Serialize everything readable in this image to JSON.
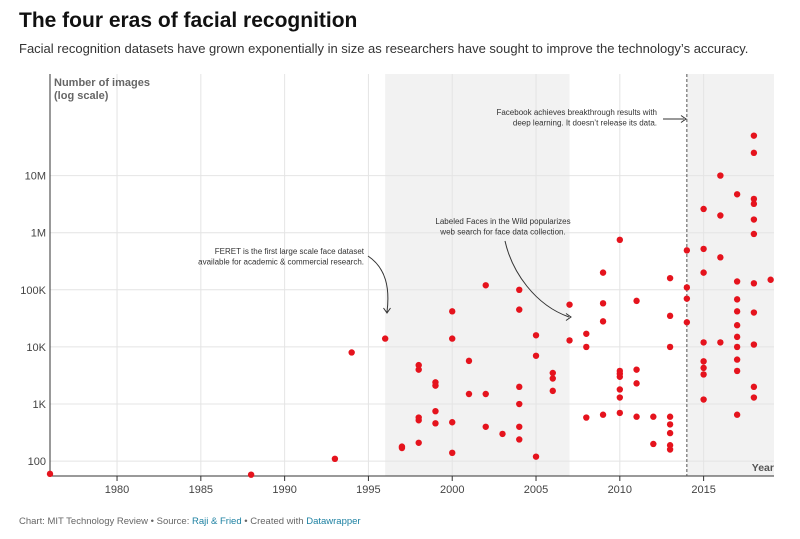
{
  "header": {
    "title": "The four eras of facial recognition",
    "subtitle": "Facial recognition datasets have grown exponentially in size as researchers have sought to improve the technology’s accuracy."
  },
  "footer": {
    "prefix": "Chart: MIT Technology Review • Source: ",
    "source": "Raji & Fried",
    "middle": " • Created with ",
    "tool": "Datawrapper"
  },
  "colors": {
    "dot": "#e5131d",
    "shade": "#f2f2f2",
    "grid": "#e4e4e4",
    "axis": "#333333",
    "link": "#1d81a2"
  },
  "chart_data": {
    "type": "scatter",
    "ylabel": "Number of images",
    "ylabel_note": "(log scale)",
    "xlabel": "Year",
    "y_scale": "log",
    "grid": true,
    "xlim": [
      1976,
      2019.2
    ],
    "ylim": [
      55,
      600000000
    ],
    "x_ticks": [
      1980,
      1985,
      1990,
      1995,
      2000,
      2005,
      2010,
      2015
    ],
    "y_ticks": [
      {
        "value": 100,
        "label": "100"
      },
      {
        "value": 1000,
        "label": "1K"
      },
      {
        "value": 10000,
        "label": "10K"
      },
      {
        "value": 100000,
        "label": "100K"
      },
      {
        "value": 1000000,
        "label": "1M"
      },
      {
        "value": 10000000,
        "label": "10M"
      }
    ],
    "shaded_eras": [
      [
        1996,
        2007
      ],
      [
        2014,
        2019.2
      ]
    ],
    "vertical_marker": 2014,
    "annotations": [
      {
        "lines": [
          "FERET is the first large scale face dataset",
          "available for academic & commercial research."
        ],
        "x": 1996,
        "y": 14000
      },
      {
        "lines": [
          "Labeled Faces in the Wild popularizes",
          "web search for face data collection."
        ],
        "x": 2007,
        "y": 13000
      },
      {
        "lines": [
          "Facebook achieves breakthrough results with",
          "deep learning. It doesn’t release its data."
        ],
        "x": 2014,
        "y": 11000000
      }
    ],
    "points": [
      [
        1976,
        60
      ],
      [
        1988,
        58
      ],
      [
        1993,
        110
      ],
      [
        1994,
        8000
      ],
      [
        1996,
        14000
      ],
      [
        1997,
        170
      ],
      [
        1997,
        180
      ],
      [
        1998,
        210
      ],
      [
        1998,
        520
      ],
      [
        1998,
        580
      ],
      [
        1998,
        4000
      ],
      [
        1998,
        4800
      ],
      [
        1999,
        460
      ],
      [
        1999,
        750
      ],
      [
        1999,
        2100
      ],
      [
        1999,
        2400
      ],
      [
        2000,
        140
      ],
      [
        2000,
        480
      ],
      [
        2000,
        14000
      ],
      [
        2000,
        42000
      ],
      [
        2001,
        1500
      ],
      [
        2001,
        5700
      ],
      [
        2002,
        400
      ],
      [
        2002,
        1500
      ],
      [
        2002,
        120000
      ],
      [
        2003,
        300
      ],
      [
        2004,
        240
      ],
      [
        2004,
        400
      ],
      [
        2004,
        1000
      ],
      [
        2004,
        2000
      ],
      [
        2004,
        45000
      ],
      [
        2004,
        100000
      ],
      [
        2005,
        120
      ],
      [
        2005,
        7000
      ],
      [
        2005,
        16000
      ],
      [
        2006,
        1700
      ],
      [
        2006,
        2800
      ],
      [
        2006,
        3500
      ],
      [
        2007,
        13000
      ],
      [
        2007,
        55000
      ],
      [
        2008,
        580
      ],
      [
        2008,
        10000
      ],
      [
        2008,
        17000
      ],
      [
        2009,
        650
      ],
      [
        2009,
        28000
      ],
      [
        2009,
        58000
      ],
      [
        2009,
        200000
      ],
      [
        2010,
        700
      ],
      [
        2010,
        1300
      ],
      [
        2010,
        1800
      ],
      [
        2010,
        3000
      ],
      [
        2010,
        3400
      ],
      [
        2010,
        3800
      ],
      [
        2010,
        750000
      ],
      [
        2011,
        600
      ],
      [
        2011,
        2300
      ],
      [
        2011,
        4000
      ],
      [
        2011,
        64000
      ],
      [
        2012,
        200
      ],
      [
        2012,
        600
      ],
      [
        2013,
        160
      ],
      [
        2013,
        190
      ],
      [
        2013,
        310
      ],
      [
        2013,
        440
      ],
      [
        2013,
        600
      ],
      [
        2013,
        10000
      ],
      [
        2013,
        35000
      ],
      [
        2013,
        160000
      ],
      [
        2014,
        27000
      ],
      [
        2014,
        70000
      ],
      [
        2014,
        110000
      ],
      [
        2014,
        490000
      ],
      [
        2015,
        1200
      ],
      [
        2015,
        3300
      ],
      [
        2015,
        4300
      ],
      [
        2015,
        5600
      ],
      [
        2015,
        12000
      ],
      [
        2015,
        200000
      ],
      [
        2015,
        520000
      ],
      [
        2015,
        2600000
      ],
      [
        2016,
        12000
      ],
      [
        2016,
        370000
      ],
      [
        2016,
        2000000
      ],
      [
        2016,
        10000000
      ],
      [
        2017,
        650
      ],
      [
        2017,
        3800
      ],
      [
        2017,
        6000
      ],
      [
        2017,
        10000
      ],
      [
        2017,
        15000
      ],
      [
        2017,
        24000
      ],
      [
        2017,
        42000
      ],
      [
        2017,
        68000
      ],
      [
        2017,
        140000
      ],
      [
        2017,
        4700000
      ],
      [
        2018,
        1300
      ],
      [
        2018,
        2000
      ],
      [
        2018,
        11000
      ],
      [
        2018,
        40000
      ],
      [
        2018,
        130000
      ],
      [
        2018,
        950000
      ],
      [
        2018,
        1700000
      ],
      [
        2018,
        3200000
      ],
      [
        2018,
        3900000
      ],
      [
        2018,
        25000000
      ],
      [
        2018,
        50000000
      ],
      [
        2019,
        150000
      ]
    ]
  }
}
